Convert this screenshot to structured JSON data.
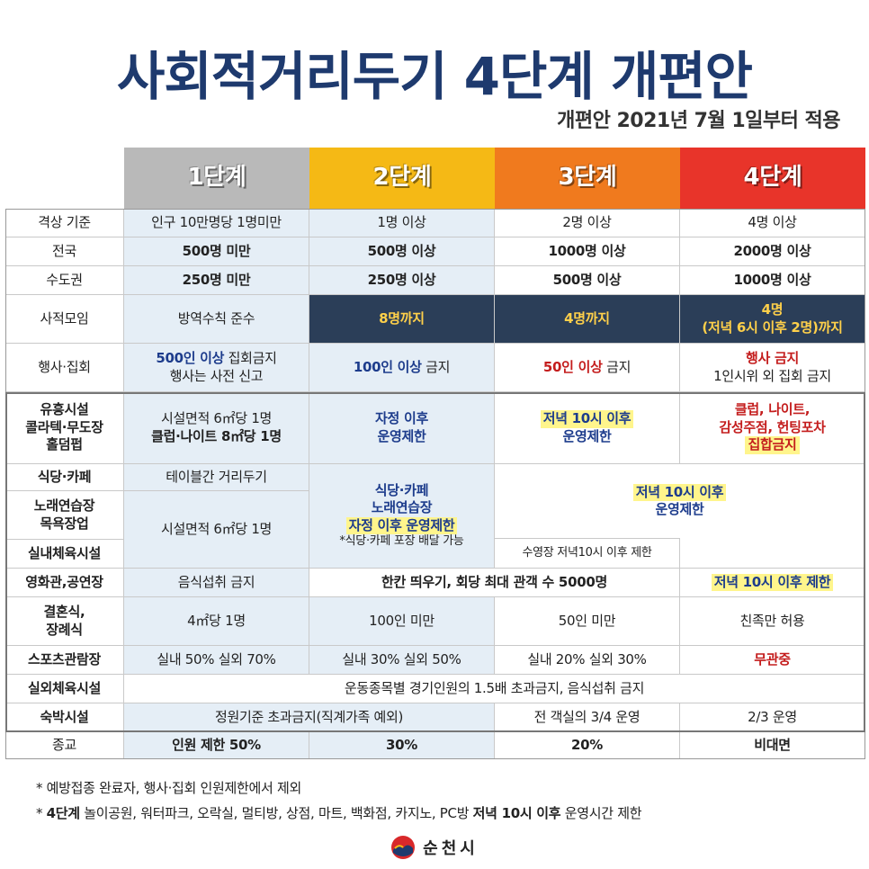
{
  "title": "사회적거리두기 4단계 개편안",
  "subtitle": "개편안 2021년 7월 1일부터 적용",
  "colors": {
    "stage1": "#b9b9b9",
    "stage2": "#f5b915",
    "stage3": "#f07a1e",
    "stage4": "#e8342a",
    "navy": "#1e3a6e",
    "dark_cell": "#2b3e58",
    "highlight": "#fff58c"
  },
  "stages": [
    "1단계",
    "2단계",
    "3단계",
    "4단계"
  ],
  "rows": {
    "upgrade": {
      "label": "격상 기준",
      "s1": "인구 10만명당 1명미만",
      "s2": "1명 이상",
      "s3": "2명 이상",
      "s4": "4명 이상"
    },
    "nation": {
      "label": "전국",
      "s1": "500명 미만",
      "s2": "500명 이상",
      "s3": "1000명 이상",
      "s4": "2000명 이상"
    },
    "capital": {
      "label": "수도권",
      "s1": "250명 미만",
      "s2": "250명 이상",
      "s3": "500명 이상",
      "s4": "1000명 이상"
    },
    "gathering": {
      "label": "사적모임",
      "s1": "방역수칙 준수",
      "s2": "8명까지",
      "s3": "4명까지",
      "s4_a": "4명",
      "s4_b": "(저녁 6시 이후 2명)까지"
    },
    "events": {
      "label": "행사·집회",
      "s1_a_em": "500인 이상",
      "s1_a": " 집회금지",
      "s1_b": "행사는 사전 신고",
      "s2_em": "100인 이상",
      "s2": " 금지",
      "s3_em": "50인 이상",
      "s3": " 금지",
      "s4_a": "행사 금지",
      "s4_b": "1인시위 외 집회 금지"
    },
    "nightlife": {
      "label_a": "유흥시설",
      "label_b": "콜라텍·무도장",
      "label_c": "홀덤펍",
      "s1_a": "시설면적 6㎡당 1명",
      "s1_b": "클럽·나이트 8㎡당 1명",
      "s2_a": "자정 이후",
      "s2_b": "운영제한",
      "s3_a": "저녁 10시 이후",
      "s3_b": "운영제한",
      "s4_a": "클럽, 나이트,",
      "s4_b": "감성주점, 헌팅포차",
      "s4_c": "집합금지"
    },
    "cafe": {
      "label": "식당·카페",
      "s1": "테이블간 거리두기"
    },
    "karaoke": {
      "label_a": "노래연습장",
      "label_b": "목욕장업",
      "s1": "시설면적 6㎡당 1명"
    },
    "indoor_sports": {
      "label": "실내체육시설"
    },
    "stage2_merged": {
      "a": "식당·카페",
      "b": "노래연습장",
      "c": "자정 이후 운영제한",
      "d": "*식당·카페 포장 배달 가능"
    },
    "stage34_merged": {
      "a": "저녁 10시 이후",
      "b": "운영제한",
      "pool": "수영장 저녁10시 이후 제한"
    },
    "cinema": {
      "label": "영화관,공연장",
      "s1": "음식섭취 금지",
      "s23": "한칸 띄우기, 회당 최대 관객 수 5000명",
      "s4": "저녁 10시 이후 제한"
    },
    "wedding": {
      "label_a": "결혼식,",
      "label_b": "장례식",
      "s1": "4㎡당 1명",
      "s2": "100인 미만",
      "s3": "50인 미만",
      "s4": "친족만 허용"
    },
    "sports_view": {
      "label": "스포츠관람장",
      "s1": "실내 50% 실외 70%",
      "s2": "실내 30% 실외 50%",
      "s3": "실내 20% 실외 30%",
      "s4": "무관중"
    },
    "outdoor_sports": {
      "label": "실외체육시설",
      "all": "운동종목별 경기인원의 1.5배 초과금지, 음식섭취 금지"
    },
    "lodging": {
      "label": "숙박시설",
      "s12": "정원기준 초과금지(직계가족 예외)",
      "s3": "전 객실의 3/4 운영",
      "s4": "2/3 운영"
    },
    "religion": {
      "label": "종교",
      "s1": "인원 제한 50%",
      "s2": "30%",
      "s3": "20%",
      "s4": "비대면"
    }
  },
  "notes": {
    "n1": "* 예방접종 완료자, 행사·집회 인원제한에서 제외",
    "n2_prefix": "* ",
    "n2_bold1": "4단계",
    "n2_mid": " 놀이공원, 워터파크, 오락실, 멀티방, 상점, 마트, 백화점, 카지노, PC방 ",
    "n2_bold2": "저녁 10시 이후",
    "n2_suffix": " 운영시간 제한"
  },
  "footer": {
    "org": "순천시",
    "logo_icon": "suncheon-logo-icon"
  }
}
